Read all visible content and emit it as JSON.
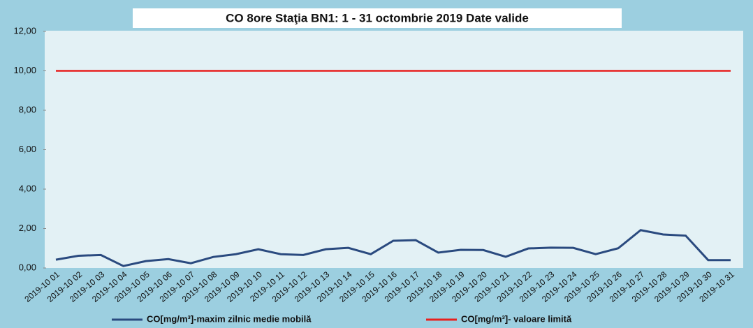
{
  "chart_data": {
    "type": "line",
    "title": "CO 8ore Staţia BN1: 1 - 31 octombrie 2019 Date valide",
    "categories": [
      "2019-10 01",
      "2019-10 02",
      "2019-10 03",
      "2019-10 04",
      "2019-10 05",
      "2019-10 06",
      "2019-10 07",
      "2019-10 08",
      "2019-10 09",
      "2019-10 10",
      "2019-10 11",
      "2019-10 12",
      "2019-10 13",
      "2019-10 14",
      "2019-10 15",
      "2019-10 16",
      "2019-10 17",
      "2019-10 18",
      "2019-10 19",
      "2019-10 20",
      "2019-10 21",
      "2019-10 22",
      "2019-10 23",
      "2019-10 24",
      "2019-10 25",
      "2019-10 26",
      "2019-10 27",
      "2019-10 28",
      "2019-10 29",
      "2019-10 30",
      "2019-10 31"
    ],
    "series": [
      {
        "name": "CO[mg/m³]-maxim zilnic medie mobilă",
        "color": "#2a4a7f",
        "values": [
          0.42,
          0.62,
          0.66,
          0.1,
          0.35,
          0.45,
          0.24,
          0.56,
          0.7,
          0.95,
          0.7,
          0.66,
          0.95,
          1.02,
          0.7,
          1.38,
          1.41,
          0.78,
          0.92,
          0.91,
          0.57,
          0.99,
          1.03,
          1.02,
          0.7,
          1.0,
          1.92,
          1.7,
          1.64,
          0.4,
          0.4
        ]
      },
      {
        "name": "CO[mg/m³]- valoare limită",
        "color": "#e8201e",
        "values": [
          10,
          10,
          10,
          10,
          10,
          10,
          10,
          10,
          10,
          10,
          10,
          10,
          10,
          10,
          10,
          10,
          10,
          10,
          10,
          10,
          10,
          10,
          10,
          10,
          10,
          10,
          10,
          10,
          10,
          10,
          10
        ]
      }
    ],
    "ylim": [
      0,
      12
    ],
    "yticks": [
      {
        "value": 0,
        "label": "0,00"
      },
      {
        "value": 2,
        "label": "2,00"
      },
      {
        "value": 4,
        "label": "4,00"
      },
      {
        "value": 6,
        "label": "6,00"
      },
      {
        "value": 8,
        "label": "8,00"
      },
      {
        "value": 10,
        "label": "10,00"
      },
      {
        "value": 12,
        "label": "12,00"
      }
    ],
    "grid": false
  }
}
